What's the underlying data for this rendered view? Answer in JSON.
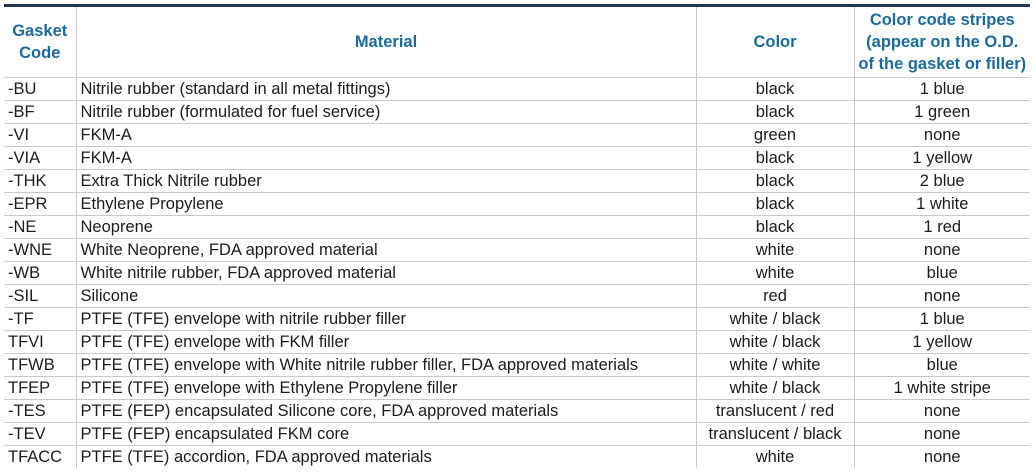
{
  "headers": {
    "code_line1": "Gasket",
    "code_line2": "Code",
    "material": "Material",
    "color": "Color",
    "stripes_line1": "Color code stripes",
    "stripes_line2": "(appear on the O.D.",
    "stripes_line3": "of the gasket or filler)"
  },
  "rows": [
    {
      "code": "-BU",
      "material": "Nitrile rubber (standard in all metal fittings)",
      "color": "black",
      "stripes": "1 blue"
    },
    {
      "code": "-BF",
      "material": "Nitrile rubber (formulated for fuel service)",
      "color": "black",
      "stripes": "1 green"
    },
    {
      "code": "-VI",
      "material": "FKM-A",
      "color": "green",
      "stripes": "none"
    },
    {
      "code": "-VIA",
      "material": "FKM-A",
      "color": "black",
      "stripes": "1 yellow"
    },
    {
      "code": "-THK",
      "material": "Extra Thick Nitrile rubber",
      "color": "black",
      "stripes": "2 blue"
    },
    {
      "code": "-EPR",
      "material": "Ethylene Propylene",
      "color": "black",
      "stripes": "1 white"
    },
    {
      "code": "-NE",
      "material": "Neoprene",
      "color": "black",
      "stripes": "1 red"
    },
    {
      "code": "-WNE",
      "material": "White Neoprene, FDA approved material",
      "color": "white",
      "stripes": "none"
    },
    {
      "code": "-WB",
      "material": "White nitrile rubber, FDA approved material",
      "color": "white",
      "stripes": "blue"
    },
    {
      "code": "-SIL",
      "material": "Silicone",
      "color": "red",
      "stripes": "none"
    },
    {
      "code": "-TF",
      "material": "PTFE (TFE) envelope with nitrile rubber filler",
      "color": "white / black",
      "stripes": "1 blue"
    },
    {
      "code": "TFVI",
      "material": "PTFE (TFE) envelope with FKM filler",
      "color": "white / black",
      "stripes": "1 yellow"
    },
    {
      "code": "TFWB",
      "material": "PTFE (TFE) envelope with White nitrile rubber filler, FDA approved materials",
      "color": "white / white",
      "stripes": "blue"
    },
    {
      "code": "TFEP",
      "material": "PTFE (TFE) envelope with Ethylene Propylene filler",
      "color": "white / black",
      "stripes": "1 white stripe"
    },
    {
      "code": "-TES",
      "material": "PTFE (FEP) encapsulated Silicone core, FDA approved materials",
      "color": "translucent / red",
      "stripes": "none"
    },
    {
      "code": "-TEV",
      "material": "PTFE (FEP) encapsulated FKM core",
      "color": "translucent / black",
      "stripes": "none"
    },
    {
      "code": "TFACC",
      "material": "PTFE (TFE) accordion, FDA approved materials",
      "color": "white",
      "stripes": "none"
    }
  ]
}
